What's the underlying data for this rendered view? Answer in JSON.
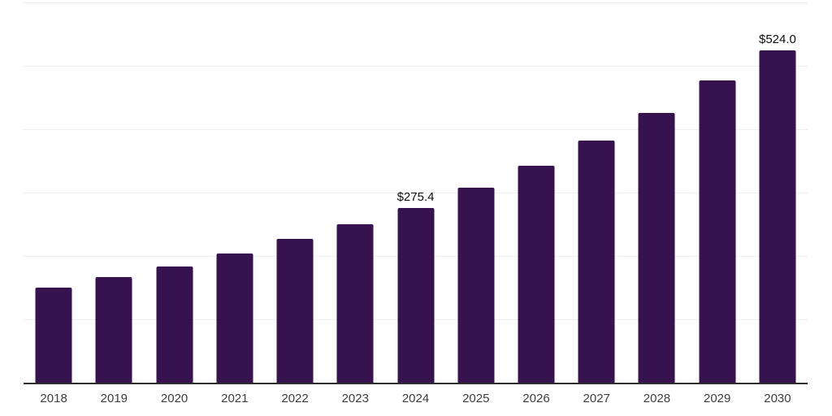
{
  "chart_data": {
    "type": "bar",
    "title": "",
    "xlabel": "",
    "ylabel": "",
    "categories": [
      "2018",
      "2019",
      "2020",
      "2021",
      "2022",
      "2023",
      "2024",
      "2025",
      "2026",
      "2027",
      "2028",
      "2029",
      "2030"
    ],
    "values": [
      150.0,
      166.8,
      183.5,
      204.0,
      226.9,
      250.0,
      275.4,
      308.0,
      341.9,
      382.4,
      425.3,
      476.5,
      524.0
    ],
    "data_labels": {
      "2024": "$275.4",
      "2030": "$524.0"
    },
    "ylim": [
      0,
      600
    ],
    "gridline_step": 100,
    "grid": "horizontal-light",
    "legend": "none",
    "bar_color": "#36124E",
    "axis_line_color": "#2d2d2d",
    "gridline_color": "#efefef",
    "background_color": "#ffffff",
    "label_color": "#0d0d0d",
    "tick_label_color": "#3d3d3d"
  }
}
